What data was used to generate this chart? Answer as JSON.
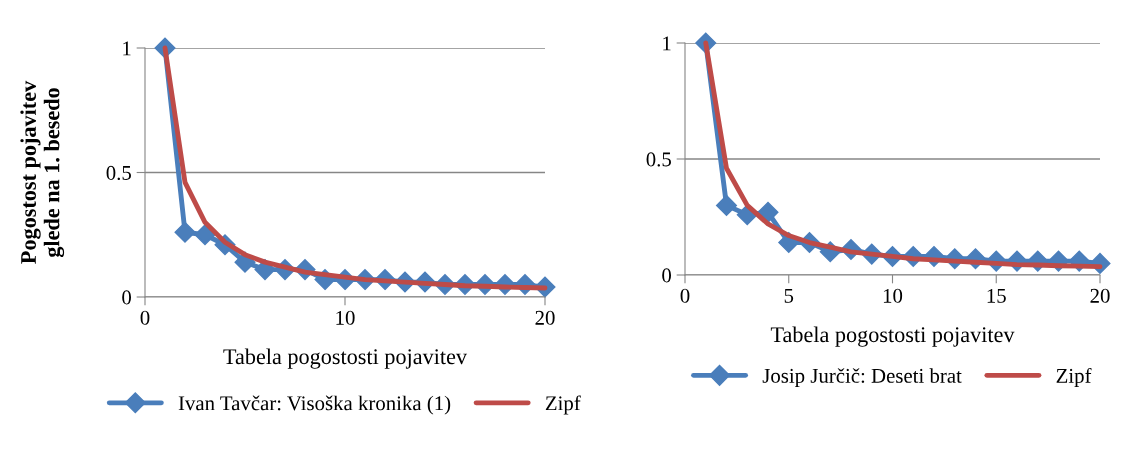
{
  "chart_data": [
    {
      "type": "line",
      "xlabel": "Tabela pogostosti pojavitev",
      "ylabel": "Pogostost pojavitev\nglede na 1. besedo",
      "x": [
        1,
        2,
        3,
        4,
        5,
        6,
        7,
        8,
        9,
        10,
        11,
        12,
        13,
        14,
        15,
        16,
        17,
        18,
        19,
        20
      ],
      "xlim": [
        0,
        20
      ],
      "xticks": [
        0,
        10,
        20
      ],
      "ylim": [
        0,
        1
      ],
      "yticks": [
        0,
        0.5,
        1
      ],
      "grid": "y",
      "legend": "bottom",
      "series": [
        {
          "name": "Ivan Tavčar: Visoška kronika (1)",
          "color": "#4a7ebb",
          "marker": "diamond",
          "values": [
            1,
            0.26,
            0.25,
            0.21,
            0.14,
            0.11,
            0.11,
            0.11,
            0.07,
            0.07,
            0.07,
            0.07,
            0.06,
            0.06,
            0.05,
            0.05,
            0.05,
            0.05,
            0.05,
            0.04
          ]
        },
        {
          "name": "Zipf",
          "color": "#be4b48",
          "marker": "none",
          "values": [
            1,
            0.46,
            0.3,
            0.22,
            0.17,
            0.14,
            0.12,
            0.1,
            0.09,
            0.08,
            0.07,
            0.065,
            0.06,
            0.055,
            0.05,
            0.045,
            0.043,
            0.04,
            0.038,
            0.036
          ]
        }
      ]
    },
    {
      "type": "line",
      "xlabel": "Tabela pogostosti pojavitev",
      "x": [
        1,
        2,
        3,
        4,
        5,
        6,
        7,
        8,
        9,
        10,
        11,
        12,
        13,
        14,
        15,
        16,
        17,
        18,
        19,
        20
      ],
      "xlim": [
        0,
        20
      ],
      "xticks": [
        0,
        5,
        10,
        15,
        20
      ],
      "ylim": [
        0,
        1
      ],
      "yticks": [
        0,
        0.5,
        1
      ],
      "grid": "y",
      "legend": "bottom",
      "series": [
        {
          "name": "Josip Jurčič: Deseti brat",
          "color": "#4a7ebb",
          "marker": "diamond",
          "values": [
            1,
            0.3,
            0.26,
            0.27,
            0.14,
            0.14,
            0.1,
            0.11,
            0.09,
            0.08,
            0.08,
            0.08,
            0.07,
            0.07,
            0.06,
            0.06,
            0.06,
            0.06,
            0.06,
            0.05
          ]
        },
        {
          "name": "Zipf",
          "color": "#be4b48",
          "marker": "none",
          "values": [
            1,
            0.46,
            0.3,
            0.22,
            0.17,
            0.14,
            0.12,
            0.1,
            0.09,
            0.08,
            0.07,
            0.065,
            0.06,
            0.055,
            0.05,
            0.045,
            0.043,
            0.04,
            0.038,
            0.036
          ]
        }
      ]
    }
  ]
}
